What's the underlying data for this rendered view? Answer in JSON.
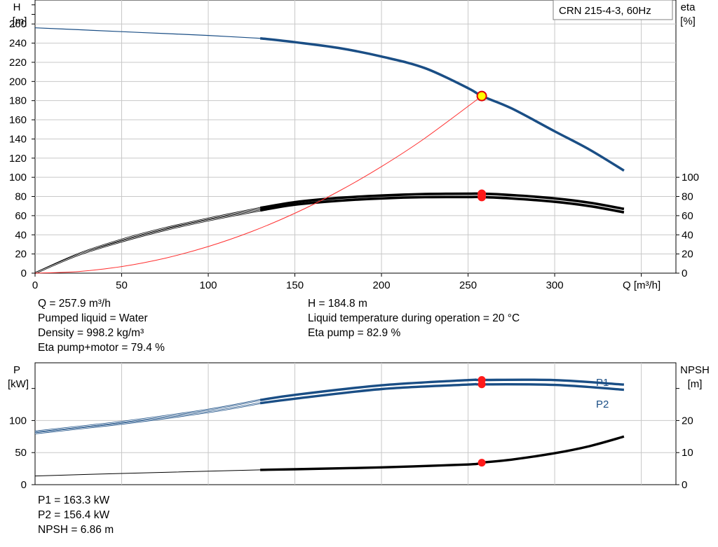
{
  "chart_data": [
    {
      "type": "line",
      "legend": "CRN 215-4-3, 60Hz",
      "xlabel": "Q [m³/h]",
      "xlim": [
        0,
        370
      ],
      "x_ticks": [
        "0",
        "50",
        "100",
        "150",
        "200",
        "250",
        "300"
      ],
      "y_left": {
        "label_line1": "H",
        "label_line2": "[m]",
        "ylim": [
          0,
          285
        ],
        "ticks": [
          "0",
          "20",
          "40",
          "60",
          "80",
          "100",
          "120",
          "140",
          "160",
          "180",
          "200",
          "220",
          "240",
          "260"
        ]
      },
      "y_right": {
        "label_line1": "eta",
        "label_line2": "[%]",
        "ticks": [
          "0",
          "20",
          "40",
          "60",
          "80",
          "100"
        ]
      },
      "grid": true,
      "series": [
        {
          "role": "head",
          "color": "#1a4e85",
          "x": [
            0,
            25,
            50,
            75,
            100,
            130,
            150,
            175,
            200,
            225,
            250,
            257.9,
            275,
            300,
            320,
            340
          ],
          "y": [
            256,
            254,
            252,
            250,
            248,
            245,
            241,
            235,
            226,
            214,
            193,
            184.8,
            172,
            148,
            129,
            107
          ]
        },
        {
          "role": "eta-pump",
          "color": "#000000",
          "x": [
            0,
            25,
            50,
            75,
            100,
            130,
            150,
            175,
            200,
            225,
            250,
            257.9,
            275,
            300,
            320,
            340
          ],
          "y": [
            0,
            20,
            35,
            47,
            57,
            68,
            74,
            78.5,
            81,
            82.5,
            82.9,
            82.9,
            81.5,
            78,
            73.5,
            67
          ]
        },
        {
          "role": "eta-pump-motor",
          "color": "#000000",
          "x": [
            0,
            25,
            50,
            75,
            100,
            130,
            150,
            175,
            200,
            225,
            250,
            257.9,
            275,
            300,
            320,
            340
          ],
          "y": [
            0,
            19,
            33,
            45,
            55,
            65.5,
            71.5,
            75.5,
            78,
            79.3,
            79.4,
            79.4,
            78,
            74.5,
            70,
            63.5
          ]
        },
        {
          "role": "system-curve",
          "color": "#ff3030",
          "x": [
            0,
            25,
            50,
            75,
            100,
            125,
            150,
            175,
            200,
            225,
            257.9
          ],
          "y": [
            0,
            1.7,
            6.9,
            15.6,
            27.8,
            43.4,
            62.5,
            85.1,
            111.2,
            140.7,
            184.8
          ]
        }
      ],
      "duty_point": {
        "x": 257.9,
        "head": 184.8,
        "eta_pump": 82.9,
        "eta_pump_motor": 79.4
      }
    },
    {
      "type": "line",
      "xlim": [
        0,
        370
      ],
      "y_left": {
        "label_line1": "P",
        "label_line2": "[kW]",
        "ylim": [
          0,
          190
        ],
        "ticks": [
          "0",
          "50",
          "100"
        ]
      },
      "y_right": {
        "label_line1": "NPSH",
        "label_line2": "[m]",
        "ylim": [
          0,
          38
        ],
        "ticks": [
          "0",
          "10",
          "20"
        ]
      },
      "grid": true,
      "series": [
        {
          "name": "P1",
          "color": "#1a4e85",
          "x": [
            0,
            50,
            100,
            130,
            150,
            200,
            250,
            257.9,
            300,
            340
          ],
          "y": [
            83,
            98,
            117,
            132,
            140,
            155,
            163,
            163.3,
            163,
            156
          ]
        },
        {
          "name": "P2",
          "color": "#1a4e85",
          "x": [
            0,
            50,
            100,
            130,
            150,
            200,
            250,
            257.9,
            300,
            340
          ],
          "y": [
            80,
            95,
            113,
            127,
            134,
            149,
            156,
            156.4,
            155.5,
            148
          ]
        },
        {
          "role": "npsh",
          "color": "#000000",
          "x": [
            0,
            50,
            100,
            130,
            150,
            200,
            250,
            257.9,
            275,
            300,
            320,
            340
          ],
          "y": [
            2.7,
            3.5,
            4.2,
            4.6,
            4.8,
            5.4,
            6.3,
            6.86,
            7.8,
            9.8,
            12.0,
            15.0
          ]
        }
      ],
      "duty_point": {
        "x": 257.9,
        "p1": 163.3,
        "p2": 156.4,
        "npsh": 6.86
      }
    }
  ],
  "info_top_left": [
    "Q = 257.9 m³/h",
    "Pumped liquid = Water",
    "Density = 998.2 kg/m³",
    "Eta pump+motor = 79.4 %"
  ],
  "info_top_right": [
    "H = 184.8 m",
    "Liquid temperature during operation = 20 °C",
    "Eta pump = 82.9 %"
  ],
  "info_bottom_left": [
    "P1 = 163.3 kW",
    "P2 = 156.4 kW",
    "NPSH = 6.86 m"
  ]
}
